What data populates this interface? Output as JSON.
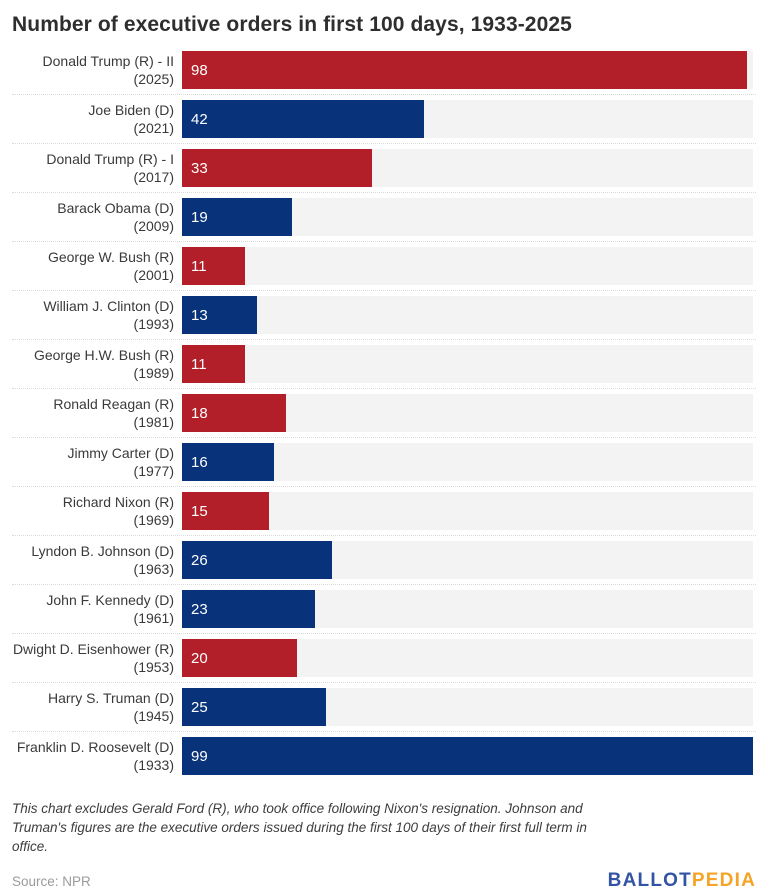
{
  "title": "Number of executive orders in first 100 days, 1933-2025",
  "chart_data": {
    "type": "bar",
    "orientation": "horizontal",
    "title": "Number of executive orders in first 100 days, 1933-2025",
    "xlabel": "",
    "ylabel": "",
    "xlim": [
      0,
      99
    ],
    "max_value": 99,
    "grid": false,
    "legend": "none",
    "value_labels": "inside-left",
    "colors": {
      "R": "#b21f29",
      "D": "#08337a",
      "track": "#f3f3f3"
    },
    "bars": [
      {
        "name": "Donald Trump (R) - II",
        "year": "(2025)",
        "value": 98,
        "party": "R"
      },
      {
        "name": "Joe Biden (D)",
        "year": "(2021)",
        "value": 42,
        "party": "D"
      },
      {
        "name": "Donald Trump (R) - I",
        "year": "(2017)",
        "value": 33,
        "party": "R"
      },
      {
        "name": "Barack Obama (D)",
        "year": "(2009)",
        "value": 19,
        "party": "D"
      },
      {
        "name": "George W. Bush (R)",
        "year": "(2001)",
        "value": 11,
        "party": "R"
      },
      {
        "name": "William J. Clinton (D)",
        "year": "(1993)",
        "value": 13,
        "party": "D"
      },
      {
        "name": "George H.W. Bush (R)",
        "year": "(1989)",
        "value": 11,
        "party": "R"
      },
      {
        "name": "Ronald Reagan (R)",
        "year": "(1981)",
        "value": 18,
        "party": "R"
      },
      {
        "name": "Jimmy Carter (D)",
        "year": "(1977)",
        "value": 16,
        "party": "D"
      },
      {
        "name": "Richard Nixon (R)",
        "year": "(1969)",
        "value": 15,
        "party": "R"
      },
      {
        "name": "Lyndon B. Johnson (D)",
        "year": "(1963)",
        "value": 26,
        "party": "D"
      },
      {
        "name": "John F. Kennedy (D)",
        "year": "(1961)",
        "value": 23,
        "party": "D"
      },
      {
        "name": "Dwight D. Eisenhower (R)",
        "year": "(1953)",
        "value": 20,
        "party": "R"
      },
      {
        "name": "Harry S. Truman (D)",
        "year": "(1945)",
        "value": 25,
        "party": "D"
      },
      {
        "name": "Franklin D. Roosevelt (D)",
        "year": "(1933)",
        "value": 99,
        "party": "D"
      }
    ]
  },
  "note": "This chart excludes Gerald Ford (R), who took office following Nixon's resignation. Johnson and Truman's figures are the executive orders issued during the first 100 days of their first full term in office.",
  "source": "Source: NPR",
  "logo": {
    "part1": "BALLOT",
    "part2": "PEDIA"
  }
}
